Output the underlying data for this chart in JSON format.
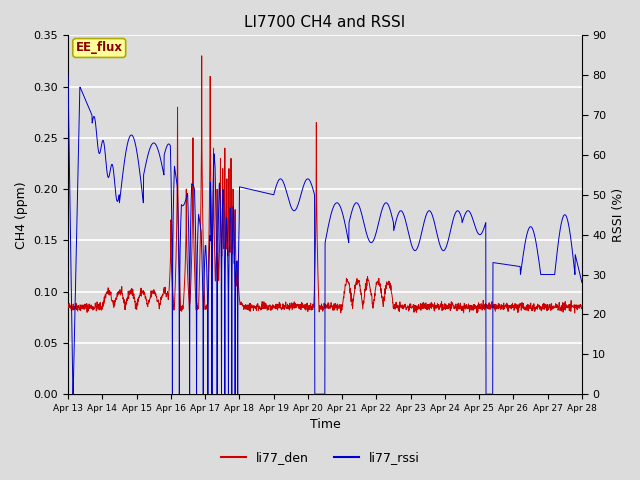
{
  "title": "LI7700 CH4 and RSSI",
  "xlabel": "Time",
  "ylabel_left": "CH4 (ppm)",
  "ylabel_right": "RSSI (%)",
  "annotation": "EE_flux",
  "ylim_left": [
    0.0,
    0.35
  ],
  "ylim_right": [
    0,
    90
  ],
  "yticks_left": [
    0.0,
    0.05,
    0.1,
    0.15,
    0.2,
    0.25,
    0.3,
    0.35
  ],
  "yticks_right_major": [
    0,
    10,
    20,
    30,
    40,
    50,
    60,
    70,
    80,
    90
  ],
  "color_den": "#cc0000",
  "color_rssi": "#0000cc",
  "bg_color": "#dcdcdc",
  "grid_color": "#ffffff",
  "legend_labels": [
    "li77_den",
    "li77_rssi"
  ],
  "x_tick_labels": [
    "Apr 13",
    "Apr 14",
    "Apr 15",
    "Apr 16",
    "Apr 17",
    "Apr 18",
    "Apr 19",
    "Apr 20",
    "Apr 21",
    "Apr 22",
    "Apr 23",
    "Apr 24",
    "Apr 25",
    "Apr 26",
    "Apr 27",
    "Apr 28"
  ]
}
